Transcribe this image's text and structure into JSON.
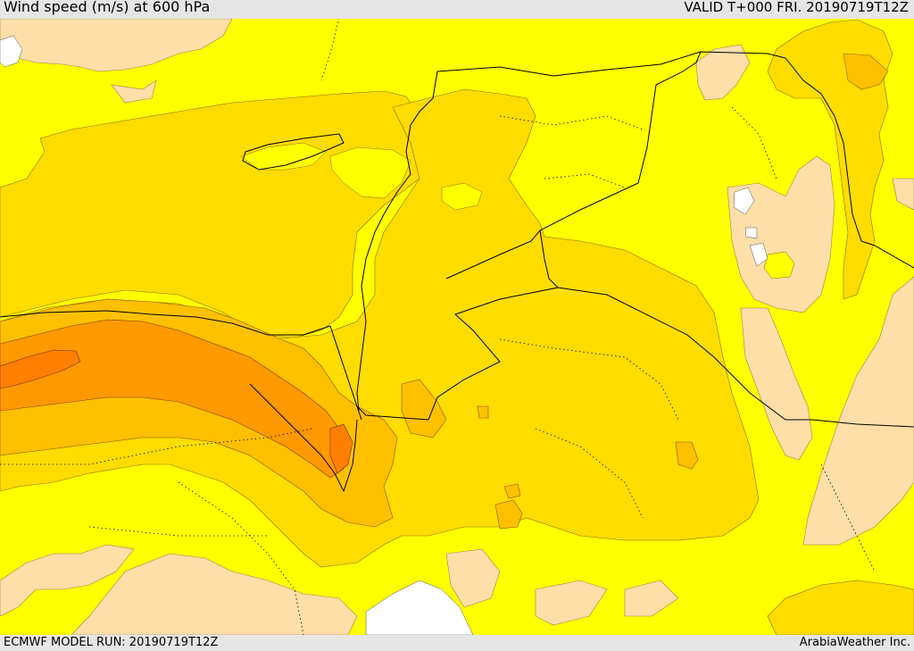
{
  "header": {
    "title": "Wind speed (m/s) at 600 hPa",
    "valid": "VALID T+000 FRI. 20190719T12Z"
  },
  "footer": {
    "model_run": "ECMWF MODEL RUN: 20190719T12Z",
    "credit": "ArabiaWeather Inc."
  },
  "colors": {
    "background_yellow": "#ffff00",
    "light_band": "#ffdd00",
    "mid_band": "#ffc000",
    "strong_band": "#ff9900",
    "max_band": "#ff7f00",
    "low_band": "#fedfa8",
    "sea_no_data": "#ffffff"
  }
}
